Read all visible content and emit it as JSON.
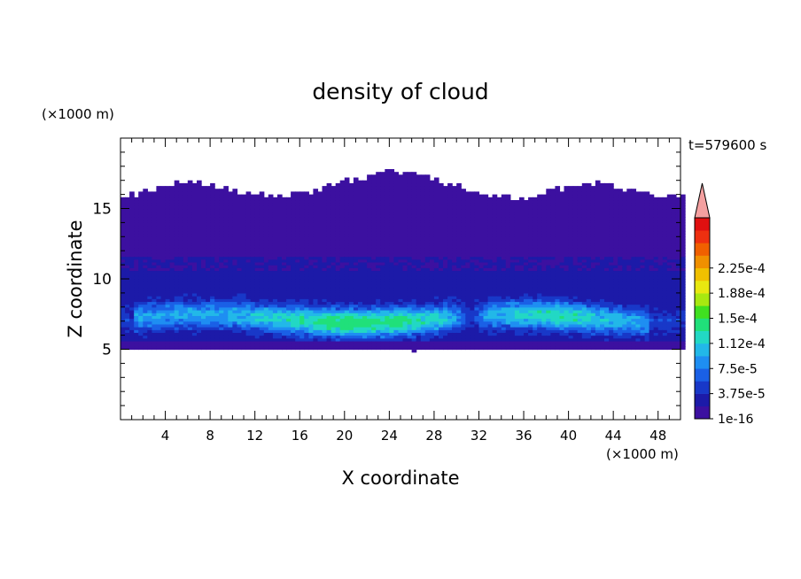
{
  "chart_data": {
    "type": "heatmap",
    "title": "density of cloud",
    "xlabel": "X coordinate",
    "ylabel": "Z coordinate",
    "x_unit": "(×1000 m)",
    "y_unit": "(×1000 m)",
    "time_label": "t=579600 s",
    "xlim": [
      0,
      50
    ],
    "ylim": [
      0,
      20
    ],
    "x_ticks": [
      4,
      8,
      12,
      16,
      20,
      24,
      28,
      32,
      36,
      40,
      44,
      48
    ],
    "y_ticks": [
      5,
      10,
      15
    ],
    "colorbar": {
      "levels": [
        "1e-16",
        "3.75e-5",
        "7.5e-5",
        "1.12e-4",
        "1.5e-4",
        "1.88e-4",
        "2.25e-4"
      ],
      "colors": [
        "#3c10a0",
        "#1c1aa8",
        "#1838c8",
        "#1a60e6",
        "#1e8ef2",
        "#22b8e8",
        "#22d8c4",
        "#20e07a",
        "#40e020",
        "#a8e810",
        "#e8e810",
        "#f0c000",
        "#f09000",
        "#f06000",
        "#ee3010",
        "#e01010"
      ],
      "overflow_color": "#f4a0a0"
    },
    "cloud": {
      "base_km": 5.0,
      "top_range_km": [
        15.5,
        17.5
      ],
      "dominant_level": "1e-16",
      "core_range_km": [
        6,
        8.5
      ],
      "core_peak_approx": "1.12e-4",
      "core_x_range_km": [
        1,
        47
      ]
    }
  }
}
